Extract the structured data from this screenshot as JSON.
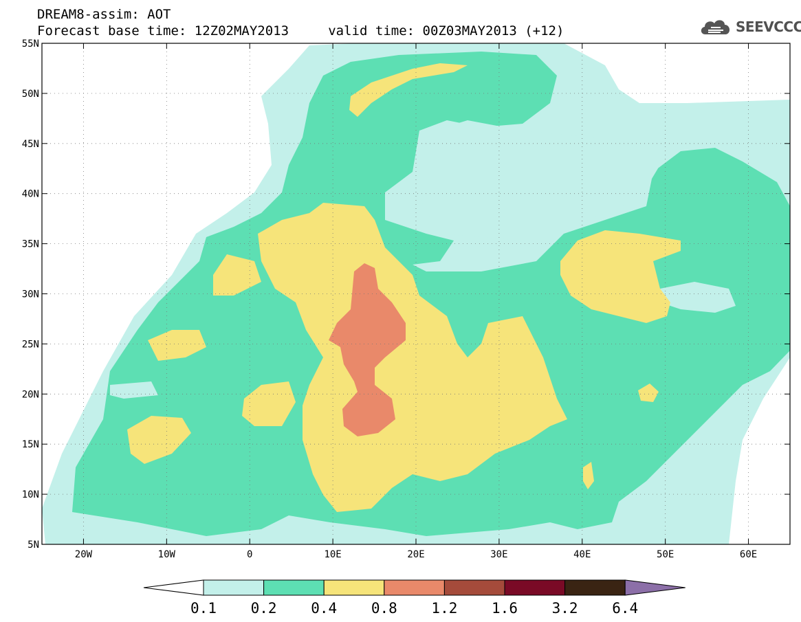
{
  "title": {
    "line1": "DREAM8-assim: AOT",
    "line2": "Forecast base time: 12Z02MAY2013     valid time: 00Z03MAY2013 (+12)"
  },
  "logo": {
    "text": "SEEVCCC",
    "icon": "cloud-icon"
  },
  "map": {
    "lon_range": [
      -25,
      65
    ],
    "lat_range": [
      5,
      55
    ],
    "grid": true,
    "lon_ticks": [
      "20W",
      "10W",
      "0",
      "10E",
      "20E",
      "30E",
      "40E",
      "50E",
      "60E"
    ],
    "lat_ticks": [
      "55N",
      "50N",
      "45N",
      "40N",
      "35N",
      "30N",
      "25N",
      "20N",
      "15N",
      "10N",
      "5N"
    ]
  },
  "colorbar": {
    "labels": [
      "0.1",
      "0.2",
      "0.4",
      "0.8",
      "1.2",
      "1.6",
      "3.2",
      "6.4"
    ],
    "colors": [
      "#c3f0ea",
      "#5ddfb3",
      "#f6e47a",
      "#e9896a",
      "#a54b3b",
      "#7a0a26",
      "#3a2413",
      "#8c6fa8"
    ],
    "under_color": "#ffffff"
  }
}
